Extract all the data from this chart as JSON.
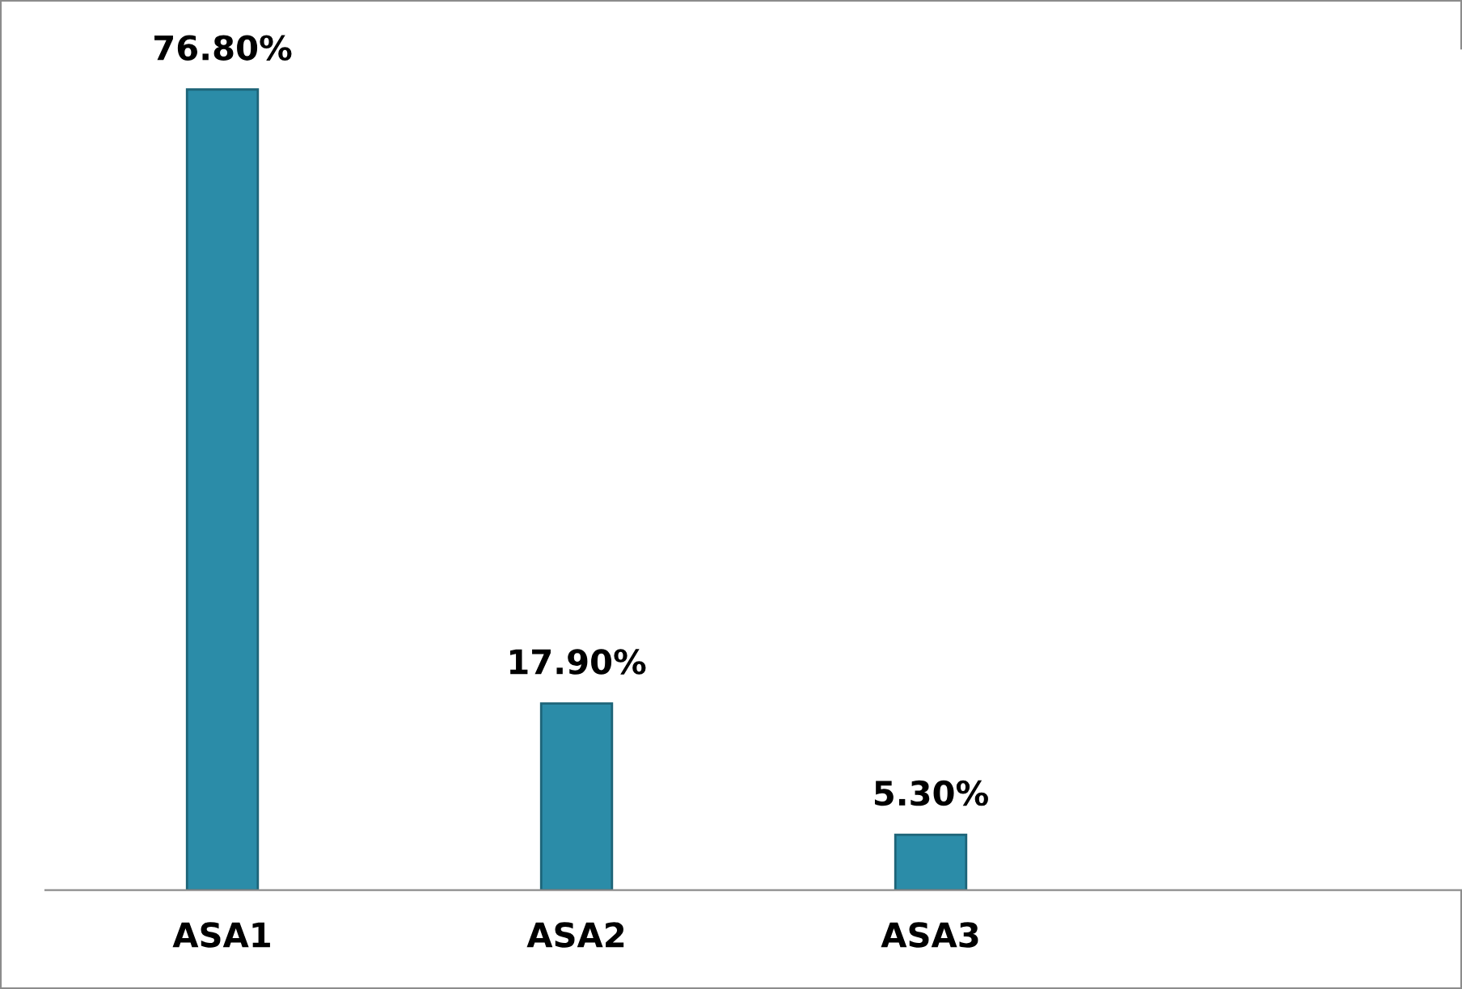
{
  "chart_data": {
    "type": "bar",
    "categories": [
      "ASA1",
      "ASA2",
      "ASA3",
      null
    ],
    "values": [
      76.8,
      17.9,
      5.3,
      null
    ],
    "value_labels": [
      "76.80%",
      "17.90%",
      "5.30%",
      null
    ],
    "color": "#2b8ca8",
    "grid": false,
    "legend": false
  }
}
